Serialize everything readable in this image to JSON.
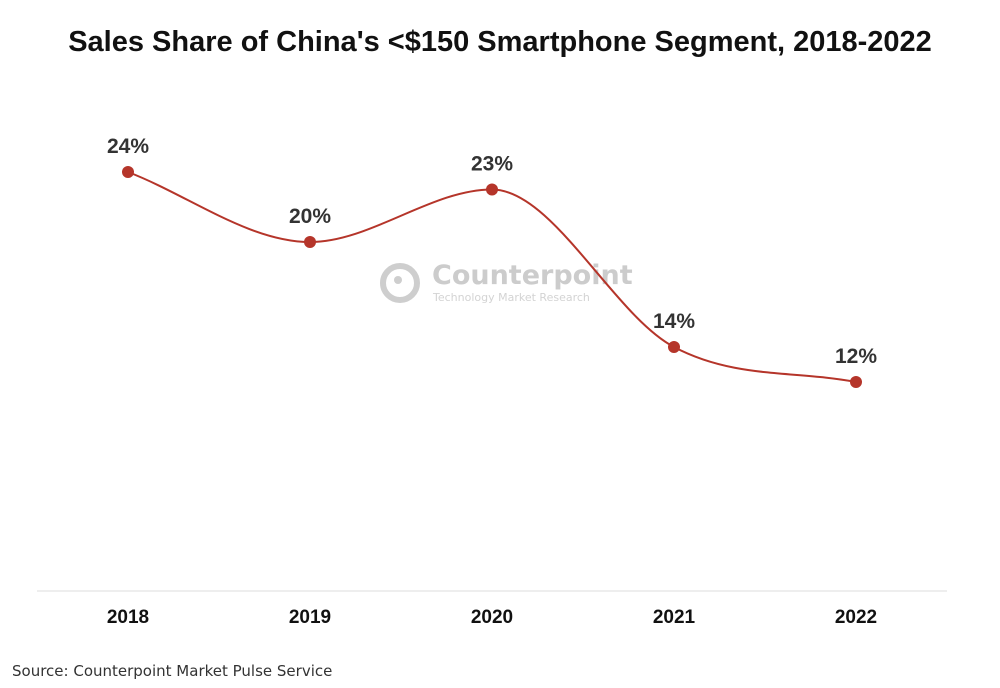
{
  "chart_data": {
    "type": "line",
    "title": "Sales Share of China's <$150 Smartphone Segment, 2018-2022",
    "categories": [
      "2018",
      "2019",
      "2020",
      "2021",
      "2022"
    ],
    "series": [
      {
        "values": [
          24,
          20,
          23,
          14,
          12
        ],
        "color": "#b5352a"
      }
    ],
    "data_labels": [
      "24%",
      "20%",
      "23%",
      "14%",
      "12%"
    ],
    "ylim": [
      0,
      24
    ],
    "grid": false,
    "legend": "none"
  },
  "watermark": {
    "brand": "Counterpoint",
    "tagline": "Technology Market Research",
    "icon": "counterpoint-logo-icon"
  },
  "source": "Source: Counterpoint Market Pulse Service",
  "colors": {
    "line": "#b5352a",
    "marker": "#b5352a",
    "axis": "#dddddd"
  }
}
